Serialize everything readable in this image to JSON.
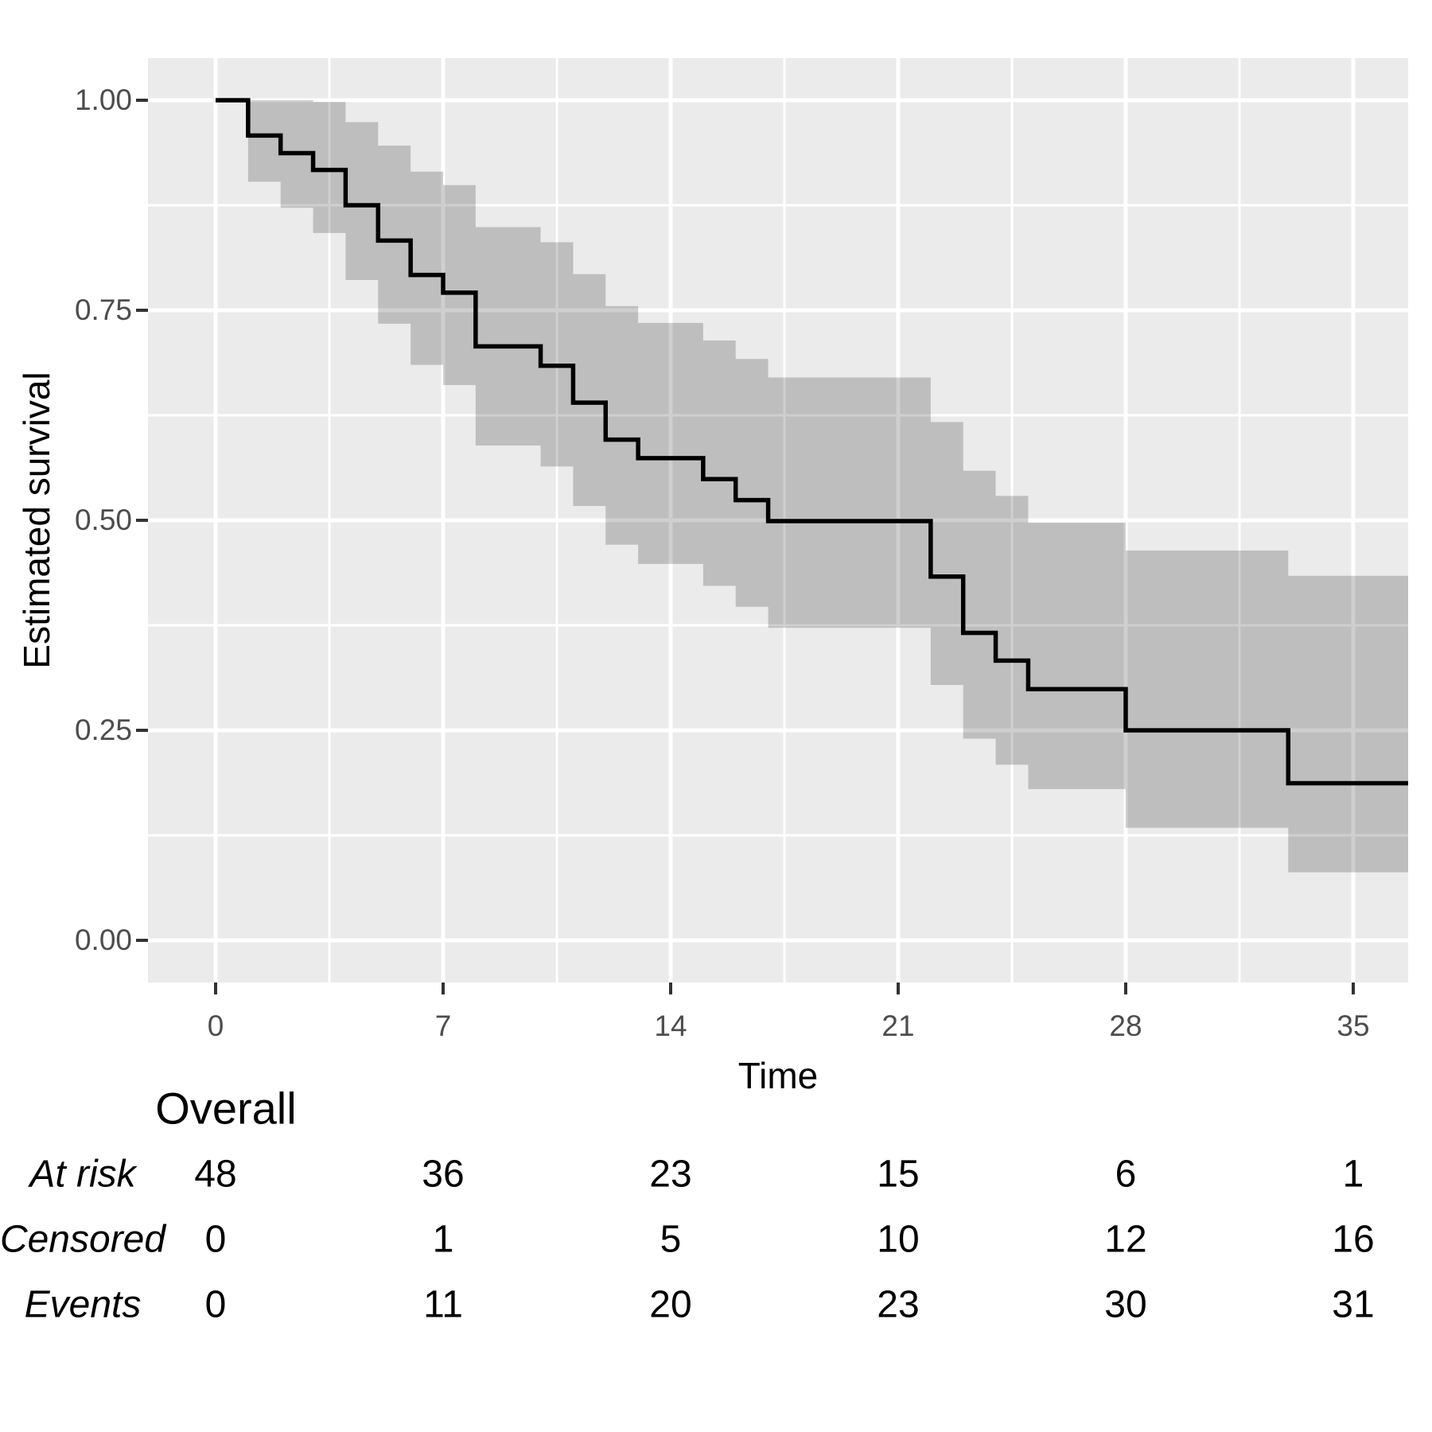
{
  "chart_data": {
    "type": "line",
    "subtype": "kaplan-meier-step-curve-with-confidence-band",
    "title": "",
    "xlabel": "Time",
    "ylabel": "Estimated survival",
    "x_ticks": [
      0,
      7,
      14,
      21,
      28,
      35
    ],
    "x_minor_ticks": [
      3.5,
      10.5,
      17.5,
      24.5,
      31.5
    ],
    "y_ticks": [
      "1.00",
      "0.75",
      "0.50",
      "0.25",
      "0.00"
    ],
    "y_tick_values": [
      1.0,
      0.75,
      0.5,
      0.25,
      0.0
    ],
    "y_minor_tick_values": [
      0.875,
      0.625,
      0.375,
      0.125
    ],
    "xlim": [
      -2.1,
      36.7
    ],
    "ylim": [
      -0.05,
      1.05
    ],
    "grid": "on",
    "legend": "none",
    "panel_color": "#EBEBEB",
    "grid_color": "#FFFFFF",
    "curve_color": "#000000",
    "band_color": "rgba(0,0,0,0.19)",
    "tick_label_color": "#4d4d4d",
    "curve": {
      "times": [
        0,
        1,
        2,
        3,
        4,
        5,
        6,
        7,
        8,
        10,
        11,
        12,
        13,
        15,
        16,
        17,
        22,
        23,
        24,
        25,
        28,
        33
      ],
      "survival": [
        1.0,
        0.958,
        0.937,
        0.917,
        0.875,
        0.833,
        0.792,
        0.771,
        0.707,
        0.684,
        0.64,
        0.596,
        0.574,
        0.549,
        0.524,
        0.499,
        0.433,
        0.366,
        0.333,
        0.299,
        0.25,
        0.187
      ],
      "end_time": 36.7
    },
    "confidence_band": {
      "times": [
        1,
        2,
        3,
        4,
        5,
        6,
        7,
        8,
        10,
        11,
        12,
        13,
        15,
        16,
        17,
        22,
        23,
        24,
        25,
        28,
        33
      ],
      "upper": [
        1.0,
        1.0,
        0.998,
        0.974,
        0.946,
        0.915,
        0.899,
        0.849,
        0.831,
        0.793,
        0.755,
        0.735,
        0.714,
        0.692,
        0.67,
        0.617,
        0.559,
        0.529,
        0.497,
        0.464,
        0.434
      ],
      "lower": [
        0.903,
        0.872,
        0.842,
        0.786,
        0.734,
        0.685,
        0.661,
        0.589,
        0.564,
        0.517,
        0.471,
        0.448,
        0.422,
        0.397,
        0.372,
        0.304,
        0.24,
        0.209,
        0.18,
        0.134,
        0.081
      ]
    },
    "risk_table": {
      "group": "Overall",
      "times": [
        0,
        7,
        14,
        21,
        28,
        35
      ],
      "rows": [
        {
          "label": "At risk",
          "values": [
            48,
            36,
            23,
            15,
            6,
            1
          ]
        },
        {
          "label": "Censored",
          "values": [
            0,
            1,
            5,
            10,
            12,
            16
          ]
        },
        {
          "label": "Events",
          "values": [
            0,
            11,
            20,
            23,
            30,
            31
          ]
        }
      ]
    }
  }
}
